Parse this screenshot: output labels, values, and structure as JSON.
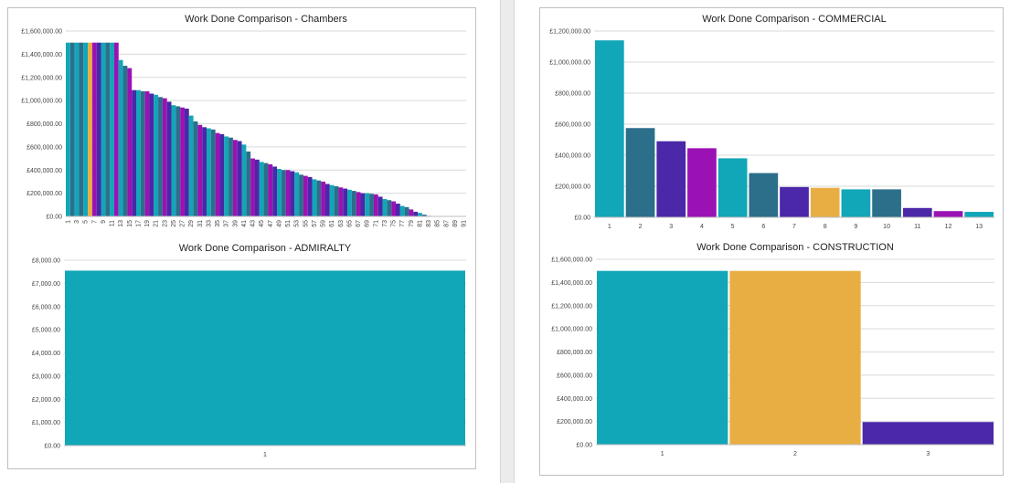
{
  "palette": [
    "#11a6b8",
    "#2b6f8a",
    "#4a28a8",
    "#9b12b4",
    "#e9ae43"
  ],
  "chart_data": [
    {
      "id": "chambers",
      "type": "bar",
      "title": "Work Done Comparison - Chambers",
      "xlabel": "",
      "ylabel": "",
      "ylim": [
        0,
        1600000
      ],
      "yticks": [
        "£0.00",
        "£200,000.00",
        "£400,000.00",
        "£600,000.00",
        "£800,000.00",
        "£1,000,000.00",
        "£1,200,000.00",
        "£1,400,000.00",
        "£1,600,000.00"
      ],
      "categories": [
        "1",
        "2",
        "3",
        "4",
        "5",
        "6",
        "7",
        "8",
        "9",
        "10",
        "11",
        "12",
        "13",
        "14",
        "15",
        "16",
        "17",
        "18",
        "19",
        "20",
        "21",
        "22",
        "23",
        "24",
        "25",
        "26",
        "27",
        "28",
        "29",
        "30",
        "31",
        "32",
        "33",
        "34",
        "35",
        "36",
        "37",
        "38",
        "39",
        "40",
        "41",
        "42",
        "43",
        "44",
        "45",
        "46",
        "47",
        "48",
        "49",
        "50",
        "51",
        "52",
        "53",
        "54",
        "55",
        "56",
        "57",
        "58",
        "59",
        "60",
        "61",
        "62",
        "63",
        "64",
        "65",
        "66",
        "67",
        "68",
        "69",
        "70",
        "71",
        "72",
        "73",
        "74",
        "75",
        "76",
        "77",
        "78",
        "79",
        "80",
        "81",
        "82",
        "83",
        "84",
        "85",
        "86",
        "87",
        "88",
        "89",
        "90",
        "91"
      ],
      "values": [
        1500000,
        1500000,
        1500000,
        1500000,
        1500000,
        1500000,
        1500000,
        1500000,
        1500000,
        1500000,
        1500000,
        1500000,
        1350000,
        1300000,
        1280000,
        1090000,
        1090000,
        1080000,
        1080000,
        1060000,
        1050000,
        1030000,
        1020000,
        990000,
        960000,
        950000,
        940000,
        930000,
        870000,
        820000,
        790000,
        770000,
        760000,
        750000,
        720000,
        710000,
        690000,
        680000,
        660000,
        650000,
        620000,
        560000,
        500000,
        490000,
        470000,
        460000,
        450000,
        430000,
        410000,
        400000,
        400000,
        390000,
        380000,
        360000,
        350000,
        340000,
        320000,
        310000,
        300000,
        280000,
        270000,
        260000,
        250000,
        240000,
        230000,
        220000,
        210000,
        200000,
        200000,
        195000,
        190000,
        170000,
        150000,
        140000,
        130000,
        110000,
        90000,
        80000,
        60000,
        40000,
        30000,
        15000,
        5000,
        2000,
        1000,
        0,
        0,
        0,
        0,
        0,
        0
      ],
      "colors": [
        0,
        1,
        0,
        1,
        0,
        4,
        3,
        2,
        0,
        1,
        0,
        3,
        0,
        1,
        3,
        2,
        0,
        1,
        3,
        2,
        0,
        1,
        3,
        2,
        0,
        1,
        3,
        2,
        0,
        1,
        3,
        2,
        0,
        1,
        3,
        2,
        0,
        1,
        3,
        2,
        0,
        1,
        3,
        2,
        0,
        1,
        3,
        2,
        0,
        1,
        3,
        2,
        0,
        1,
        3,
        2,
        0,
        1,
        3,
        2,
        0,
        1,
        3,
        2,
        0,
        1,
        3,
        2,
        0,
        1,
        3,
        2,
        0,
        1,
        3,
        2,
        0,
        1,
        3,
        2,
        0,
        1,
        3,
        2,
        0,
        1,
        3,
        2,
        0,
        1,
        3
      ],
      "xticks": [
        "1",
        "3",
        "5",
        "7",
        "9",
        "11",
        "13",
        "15",
        "17",
        "19",
        "21",
        "23",
        "25",
        "27",
        "29",
        "31",
        "33",
        "35",
        "37",
        "39",
        "41",
        "43",
        "45",
        "47",
        "49",
        "51",
        "53",
        "55",
        "57",
        "59",
        "61",
        "63",
        "65",
        "67",
        "69",
        "71",
        "73",
        "75",
        "77",
        "79",
        "81",
        "83",
        "85",
        "87",
        "89",
        "91"
      ]
    },
    {
      "id": "commercial",
      "type": "bar",
      "title": "Work Done Comparison - COMMERCIAL",
      "xlabel": "",
      "ylabel": "",
      "ylim": [
        0,
        1200000
      ],
      "yticks": [
        "£0.00",
        "£200,000.00",
        "£400,000.00",
        "£600,000.00",
        "£800,000.00",
        "£1,000,000.00",
        "£1,200,000.00"
      ],
      "categories": [
        "1",
        "2",
        "3",
        "4",
        "5",
        "6",
        "7",
        "8",
        "9",
        "10",
        "11",
        "12",
        "13"
      ],
      "values": [
        1140000,
        575000,
        490000,
        445000,
        380000,
        285000,
        195000,
        190000,
        180000,
        180000,
        60000,
        40000,
        35000
      ],
      "colors": [
        0,
        1,
        2,
        3,
        0,
        1,
        2,
        4,
        0,
        1,
        2,
        3,
        0
      ],
      "xticks": [
        "1",
        "2",
        "3",
        "4",
        "5",
        "6",
        "7",
        "8",
        "9",
        "10",
        "11",
        "12",
        "13"
      ]
    },
    {
      "id": "admiralty",
      "type": "bar",
      "title": "Work Done Comparison - ADMIRALTY",
      "xlabel": "",
      "ylabel": "",
      "ylim": [
        0,
        8000
      ],
      "yticks": [
        "£0.00",
        "£1,000.00",
        "£2,000.00",
        "£3,000.00",
        "£4,000.00",
        "£5,000.00",
        "£6,000.00",
        "£7,000.00",
        "£8,000.00"
      ],
      "categories": [
        "1"
      ],
      "values": [
        7550
      ],
      "colors": [
        0
      ],
      "xticks": [
        "1"
      ]
    },
    {
      "id": "construction",
      "type": "bar",
      "title": "Work Done Comparison - CONSTRUCTION",
      "xlabel": "",
      "ylabel": "",
      "ylim": [
        0,
        1600000
      ],
      "yticks": [
        "£0.00",
        "£200,000.00",
        "£400,000.00",
        "£600,000.00",
        "£800,000.00",
        "£1,000,000.00",
        "£1,200,000.00",
        "£1,400,000.00",
        "£1,600,000.00"
      ],
      "categories": [
        "1",
        "2",
        "3"
      ],
      "values": [
        1500000,
        1500000,
        195000
      ],
      "colors": [
        0,
        4,
        2
      ],
      "xticks": [
        "1",
        "2",
        "3"
      ]
    }
  ]
}
